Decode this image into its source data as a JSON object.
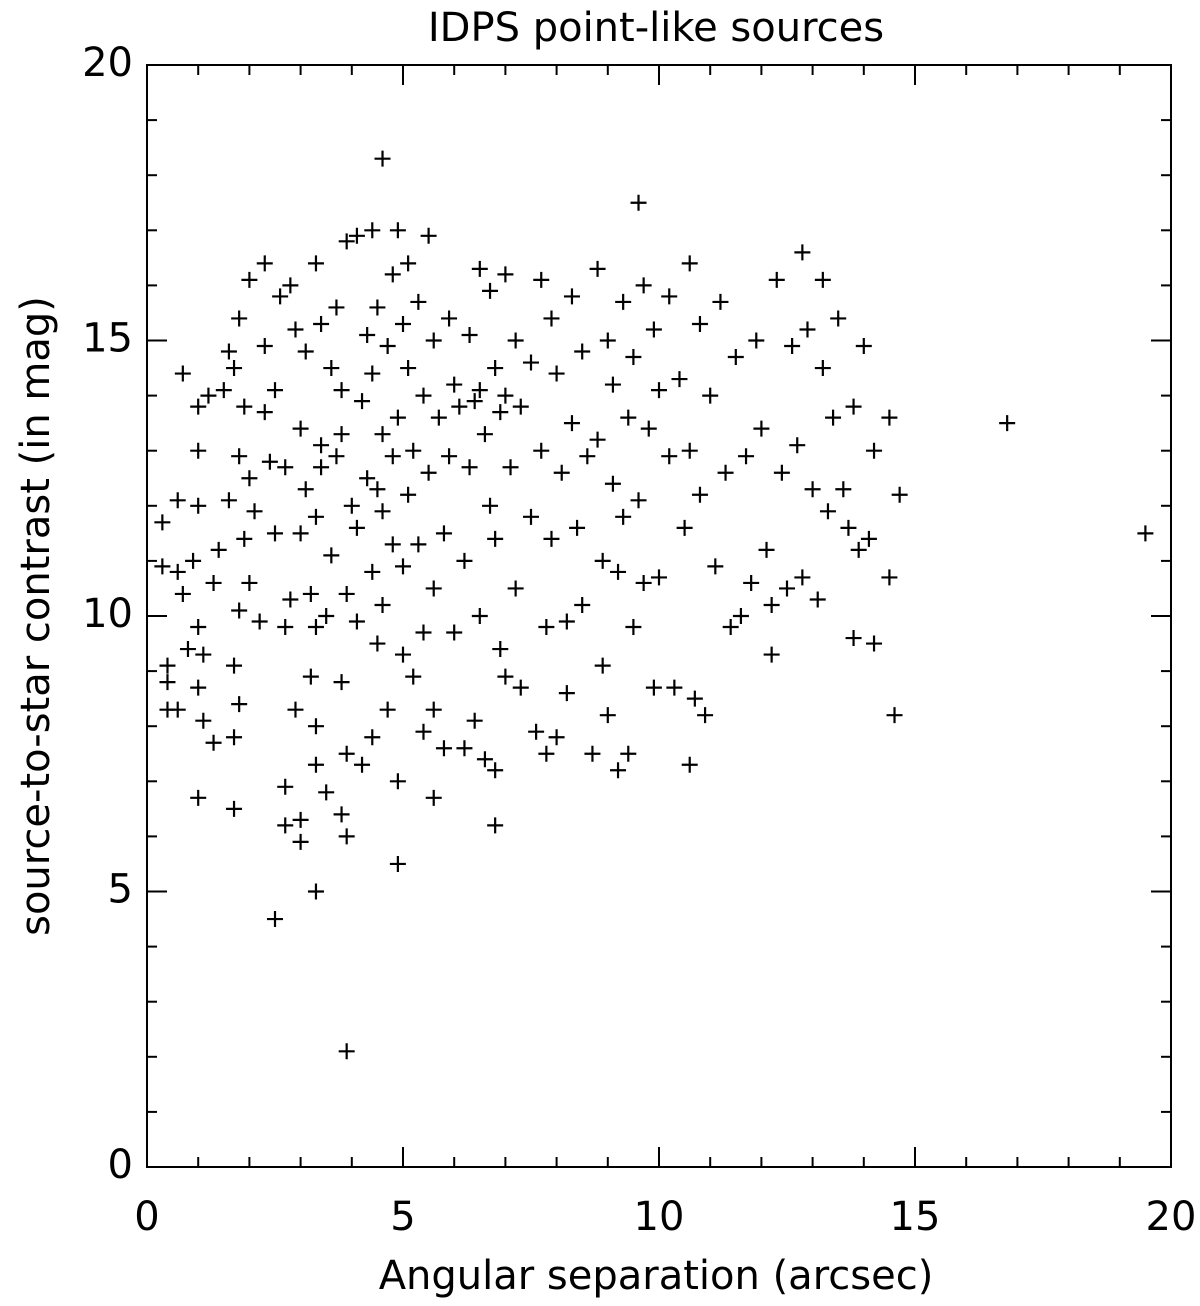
{
  "chart_data": {
    "type": "scatter",
    "title": "IDPS point-like sources",
    "x_label": "Angular separation (arcsec)",
    "y_label": "source-to-star contrast (in mag)",
    "color": "#000000",
    "marker": "plus",
    "xlim": [
      0,
      20
    ],
    "ylim": [
      0,
      20
    ],
    "xticks": [
      0,
      5,
      10,
      15,
      20
    ],
    "yticks": [
      0,
      5,
      10,
      15,
      20
    ],
    "minor_ticks": true,
    "x": [
      0.3,
      0.3,
      0.4,
      0.4,
      0.4,
      0.6,
      0.6,
      0.6,
      0.7,
      0.7,
      0.8,
      0.9,
      1.0,
      1.0,
      1.0,
      1.0,
      1.0,
      1.1,
      1.1,
      1.2,
      1.3,
      1.3,
      1.4,
      1.5,
      1.6,
      1.6,
      1.7,
      1.7,
      1.7,
      1.8,
      1.8,
      1.8,
      1.8,
      1.9,
      1.9,
      2.0,
      2.0,
      2.0,
      2.1,
      2.2,
      2.3,
      2.3,
      2.3,
      2.4,
      2.5,
      2.5,
      2.6,
      2.7,
      2.7,
      2.7,
      2.7,
      2.8,
      2.8,
      2.9,
      2.9,
      3.0,
      3.0,
      3.0,
      3.0,
      3.1,
      3.1,
      3.2,
      3.2,
      3.3,
      3.3,
      3.3,
      3.3,
      3.3,
      3.4,
      3.4,
      3.4,
      3.5,
      3.5,
      3.6,
      3.6,
      3.7,
      3.7,
      3.8,
      3.8,
      3.8,
      3.8,
      3.9,
      3.9,
      3.9,
      3.9,
      4.0,
      4.1,
      4.1,
      4.1,
      4.2,
      4.2,
      4.3,
      4.3,
      4.4,
      4.4,
      4.4,
      4.4,
      4.5,
      4.5,
      4.5,
      4.6,
      4.6,
      4.6,
      4.7,
      4.7,
      4.8,
      4.8,
      4.8,
      4.9,
      4.9,
      4.9,
      5.0,
      5.0,
      5.0,
      5.1,
      5.1,
      5.1,
      5.2,
      5.2,
      5.3,
      5.3,
      5.4,
      5.4,
      5.4,
      5.5,
      5.5,
      5.6,
      5.6,
      5.6,
      5.6,
      5.7,
      5.8,
      5.8,
      5.9,
      5.9,
      6.0,
      6.0,
      6.1,
      6.2,
      6.2,
      6.3,
      6.3,
      6.4,
      6.4,
      6.5,
      6.5,
      6.5,
      6.6,
      6.6,
      6.7,
      6.7,
      6.8,
      6.8,
      6.8,
      6.9,
      6.9,
      7.0,
      7.0,
      7.0,
      7.1,
      7.2,
      7.2,
      7.3,
      7.3,
      7.5,
      7.5,
      7.6,
      7.7,
      7.7,
      7.8,
      7.8,
      7.9,
      7.9,
      8.0,
      8.0,
      8.1,
      8.2,
      8.2,
      8.3,
      8.3,
      8.4,
      8.5,
      8.5,
      8.6,
      8.7,
      8.8,
      8.8,
      8.9,
      8.9,
      9.0,
      9.0,
      9.1,
      9.1,
      9.2,
      9.2,
      9.3,
      9.3,
      9.4,
      9.4,
      9.5,
      9.5,
      9.6,
      9.7,
      9.7,
      9.8,
      9.9,
      9.9,
      10.0,
      10.0,
      10.2,
      10.2,
      10.3,
      10.4,
      10.5,
      10.6,
      10.6,
      10.7,
      10.8,
      10.8,
      10.9,
      11.0,
      11.1,
      11.2,
      11.3,
      11.4,
      11.5,
      11.6,
      11.7,
      11.8,
      11.9,
      12.0,
      12.1,
      12.2,
      12.3,
      12.4,
      12.5,
      12.6,
      12.7,
      12.8,
      12.9,
      13.0,
      13.1,
      13.2,
      13.3,
      13.4,
      13.6,
      13.7,
      13.8,
      13.9,
      14.1,
      14.2,
      19.5,
      16.8,
      14.6,
      3.9,
      2.5,
      4.6,
      9.6,
      12.8,
      4.9,
      3.3,
      6.8,
      1.0,
      1.7,
      14.5,
      14.7,
      14.5,
      14.2,
      13.8,
      12.2,
      10.6,
      14.0,
      13.5,
      13.2
    ],
    "values": [
      11.7,
      10.9,
      9.1,
      8.8,
      8.3,
      8.3,
      10.8,
      12.1,
      14.4,
      10.4,
      9.4,
      11.0,
      13.8,
      13.0,
      12.0,
      9.8,
      8.7,
      9.3,
      8.1,
      14.0,
      10.6,
      7.7,
      11.2,
      14.1,
      14.8,
      12.1,
      14.5,
      9.1,
      7.8,
      15.4,
      12.9,
      10.1,
      8.4,
      13.8,
      11.4,
      16.1,
      12.5,
      10.6,
      11.9,
      9.9,
      16.4,
      14.9,
      13.7,
      12.8,
      11.5,
      14.1,
      15.8,
      12.7,
      9.8,
      6.9,
      6.2,
      16.0,
      10.3,
      15.2,
      8.3,
      13.4,
      11.5,
      6.3,
      5.9,
      14.8,
      12.3,
      10.4,
      8.9,
      16.4,
      11.8,
      9.8,
      8.0,
      7.3,
      15.3,
      13.1,
      12.7,
      10.0,
      6.8,
      14.5,
      11.1,
      12.9,
      15.6,
      14.1,
      13.3,
      8.8,
      6.4,
      6.0,
      16.8,
      10.4,
      7.5,
      12.0,
      16.9,
      11.6,
      9.9,
      13.9,
      7.3,
      15.1,
      12.5,
      17.0,
      14.4,
      10.8,
      7.8,
      15.6,
      12.3,
      9.5,
      13.3,
      11.9,
      10.2,
      14.9,
      8.3,
      16.2,
      12.9,
      11.3,
      17.0,
      13.6,
      7.0,
      15.3,
      10.9,
      9.3,
      16.4,
      14.5,
      12.2,
      13.0,
      8.9,
      15.7,
      11.3,
      14.0,
      9.7,
      7.9,
      16.9,
      12.6,
      15.0,
      10.5,
      8.3,
      6.7,
      13.6,
      11.5,
      7.6,
      15.4,
      12.9,
      14.2,
      9.7,
      13.8,
      11.0,
      7.6,
      15.1,
      12.7,
      13.9,
      8.1,
      16.3,
      14.1,
      10.0,
      13.3,
      7.4,
      15.9,
      12.0,
      14.5,
      11.4,
      7.2,
      13.7,
      9.4,
      16.2,
      14.0,
      8.9,
      12.7,
      15.0,
      10.5,
      13.8,
      8.7,
      14.6,
      11.8,
      7.9,
      16.1,
      13.0,
      9.8,
      7.5,
      15.4,
      11.4,
      14.4,
      7.8,
      12.6,
      9.9,
      8.6,
      15.8,
      13.5,
      11.6,
      14.8,
      10.2,
      12.9,
      7.5,
      16.3,
      13.2,
      11.0,
      9.1,
      15.0,
      8.2,
      14.2,
      12.4,
      10.8,
      7.2,
      15.7,
      11.8,
      13.6,
      7.5,
      14.7,
      9.8,
      12.1,
      16.0,
      10.6,
      13.4,
      15.2,
      8.7,
      14.1,
      10.7,
      15.8,
      12.9,
      8.7,
      14.3,
      11.6,
      16.4,
      13.0,
      8.5,
      15.3,
      12.2,
      8.2,
      14.0,
      10.9,
      15.7,
      12.6,
      9.8,
      14.7,
      10.0,
      12.9,
      10.6,
      15.0,
      13.4,
      11.2,
      10.2,
      16.1,
      12.6,
      10.5,
      14.9,
      13.1,
      10.7,
      15.2,
      12.3,
      10.3,
      14.5,
      11.9,
      13.6,
      12.3,
      11.6,
      13.8,
      11.2,
      11.4,
      13.0,
      11.5,
      13.5,
      8.2,
      2.1,
      4.5,
      18.3,
      17.5,
      16.6,
      5.5,
      5.0,
      6.2,
      6.7,
      6.5,
      13.6,
      12.2,
      10.7,
      9.5,
      9.6,
      9.3,
      7.3,
      14.9,
      15.4,
      16.1
    ]
  }
}
